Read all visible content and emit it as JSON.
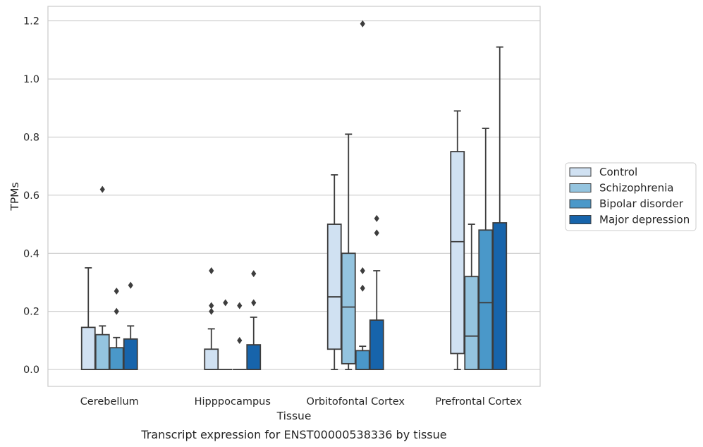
{
  "chart_data": {
    "type": "box",
    "xlabel": "Tissue",
    "ylabel": "TPMs",
    "caption": "Transcript expression for ENST00000538336 by tissue",
    "ylim": [
      -0.058,
      1.25
    ],
    "yticks": [
      0.0,
      0.2,
      0.4,
      0.6,
      0.8,
      1.0,
      1.2
    ],
    "ytick_labels": [
      "0.0",
      "0.2",
      "0.4",
      "0.6",
      "0.8",
      "1.0",
      "1.2"
    ],
    "grid": "horizontal",
    "legend_position": "right",
    "categories": [
      "Cerebellum",
      "Hipppocampus",
      "Orbitofontal Cortex",
      "Prefrontal Cortex"
    ],
    "series": [
      {
        "name": "Control",
        "color": "#d0e1f2",
        "boxes": [
          {
            "whisker_low": 0.0,
            "q1": 0.0,
            "median": 0.0,
            "q3": 0.145,
            "whisker_high": 0.35,
            "outliers": []
          },
          {
            "whisker_low": 0.0,
            "q1": 0.0,
            "median": 0.0,
            "q3": 0.07,
            "whisker_high": 0.14,
            "outliers": [
              0.2,
              0.22,
              0.34
            ]
          },
          {
            "whisker_low": 0.0,
            "q1": 0.07,
            "median": 0.25,
            "q3": 0.5,
            "whisker_high": 0.67,
            "outliers": []
          },
          {
            "whisker_low": 0.0,
            "q1": 0.055,
            "median": 0.44,
            "q3": 0.75,
            "whisker_high": 0.89,
            "outliers": []
          }
        ]
      },
      {
        "name": "Schizophrenia",
        "color": "#94c4df",
        "boxes": [
          {
            "whisker_low": 0.0,
            "q1": 0.0,
            "median": 0.0,
            "q3": 0.12,
            "whisker_high": 0.15,
            "outliers": [
              0.62
            ]
          },
          {
            "whisker_low": 0.0,
            "q1": 0.0,
            "median": 0.0,
            "q3": 0.0,
            "whisker_high": 0.0,
            "outliers": [
              0.23
            ]
          },
          {
            "whisker_low": 0.0,
            "q1": 0.02,
            "median": 0.215,
            "q3": 0.4,
            "whisker_high": 0.81,
            "outliers": []
          },
          {
            "whisker_low": 0.0,
            "q1": 0.0,
            "median": 0.115,
            "q3": 0.32,
            "whisker_high": 0.5,
            "outliers": []
          }
        ]
      },
      {
        "name": "Bipolar disorder",
        "color": "#4a98c9",
        "boxes": [
          {
            "whisker_low": 0.0,
            "q1": 0.0,
            "median": 0.0,
            "q3": 0.075,
            "whisker_high": 0.11,
            "outliers": [
              0.2,
              0.27
            ]
          },
          {
            "whisker_low": 0.0,
            "q1": 0.0,
            "median": 0.0,
            "q3": 0.0,
            "whisker_high": 0.0,
            "outliers": [
              0.1,
              0.22
            ]
          },
          {
            "whisker_low": 0.0,
            "q1": 0.0,
            "median": 0.0,
            "q3": 0.065,
            "whisker_high": 0.08,
            "outliers": [
              0.28,
              0.34,
              1.19
            ]
          },
          {
            "whisker_low": 0.0,
            "q1": 0.0,
            "median": 0.23,
            "q3": 0.48,
            "whisker_high": 0.83,
            "outliers": []
          }
        ]
      },
      {
        "name": "Major depression",
        "color": "#1764ab",
        "boxes": [
          {
            "whisker_low": 0.0,
            "q1": 0.0,
            "median": 0.0,
            "q3": 0.105,
            "whisker_high": 0.15,
            "outliers": [
              0.29
            ]
          },
          {
            "whisker_low": 0.0,
            "q1": 0.0,
            "median": 0.0,
            "q3": 0.085,
            "whisker_high": 0.18,
            "outliers": [
              0.23,
              0.33
            ]
          },
          {
            "whisker_low": 0.0,
            "q1": 0.0,
            "median": 0.0,
            "q3": 0.17,
            "whisker_high": 0.34,
            "outliers": [
              0.47,
              0.52
            ]
          },
          {
            "whisker_low": 0.0,
            "q1": 0.0,
            "median": 0.0,
            "q3": 0.505,
            "whisker_high": 1.11,
            "outliers": []
          }
        ]
      }
    ]
  }
}
